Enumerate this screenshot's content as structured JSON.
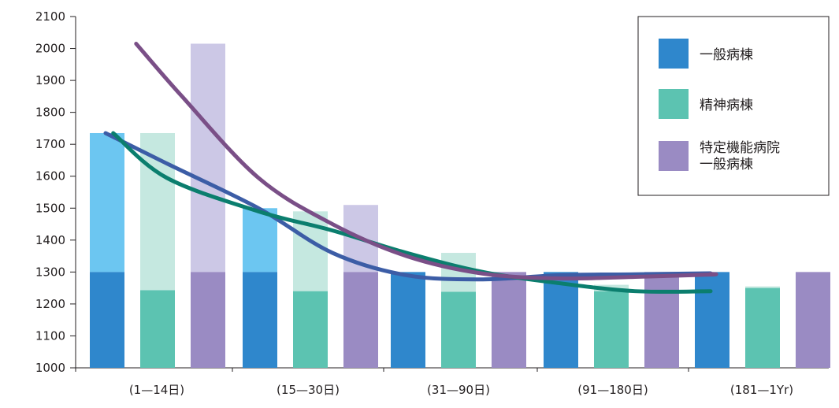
{
  "chart_data": {
    "type": "bar",
    "categories": [
      "(1—14日)",
      "(15—30日)",
      "(31—90日)",
      "(91—180日)",
      "(181—1Yr)"
    ],
    "ylim": [
      1000,
      2100
    ],
    "yticks": [
      1000,
      1100,
      1200,
      1300,
      1400,
      1500,
      1600,
      1700,
      1800,
      1900,
      2000,
      2100
    ],
    "grid": false,
    "legend_position": "top-right",
    "series": [
      {
        "name": "一般病棟",
        "color_dark": "#2f87cc",
        "color_light": "#6cc6f1",
        "base_values": [
          1300,
          1300,
          1300,
          1300,
          1300
        ],
        "values": [
          1735,
          1500,
          1300,
          1300,
          1300
        ]
      },
      {
        "name": "精神病棟",
        "color_dark": "#5cc3b1",
        "color_light": "#c5e8e0",
        "base_values": [
          1243,
          1240,
          1238,
          1240,
          1250
        ],
        "values": [
          1735,
          1490,
          1360,
          1260,
          1255
        ]
      },
      {
        "name_lines": [
          "特定機能病院",
          "一般病棟"
        ],
        "color_dark": "#9a8bc3",
        "color_light": "#ccc8e6",
        "base_values": [
          1300,
          1300,
          1300,
          1300,
          1300
        ],
        "values": [
          2015,
          1510,
          1300,
          1300,
          1300
        ]
      }
    ],
    "trend_lines": [
      {
        "color": "#3c5da6",
        "points": [
          [
            0.0,
            1735
          ],
          [
            0.4,
            1640
          ],
          [
            1.0,
            1500
          ],
          [
            1.5,
            1360
          ],
          [
            2.0,
            1290
          ],
          [
            2.5,
            1277
          ],
          [
            3.0,
            1290
          ],
          [
            3.5,
            1293
          ],
          [
            4.0,
            1296
          ]
        ]
      },
      {
        "color": "#0b7e6e",
        "points": [
          [
            0.05,
            1735
          ],
          [
            0.4,
            1595
          ],
          [
            1.0,
            1490
          ],
          [
            1.5,
            1430
          ],
          [
            2.0,
            1360
          ],
          [
            2.5,
            1300
          ],
          [
            3.0,
            1265
          ],
          [
            3.5,
            1240
          ],
          [
            4.0,
            1240
          ]
        ]
      },
      {
        "color": "#7a4f87",
        "points": [
          [
            0.2,
            2015
          ],
          [
            0.5,
            1850
          ],
          [
            1.0,
            1595
          ],
          [
            1.5,
            1450
          ],
          [
            2.0,
            1350
          ],
          [
            2.5,
            1295
          ],
          [
            3.0,
            1280
          ],
          [
            3.5,
            1285
          ],
          [
            4.0,
            1292
          ],
          [
            4.2,
            1294
          ]
        ]
      }
    ]
  }
}
